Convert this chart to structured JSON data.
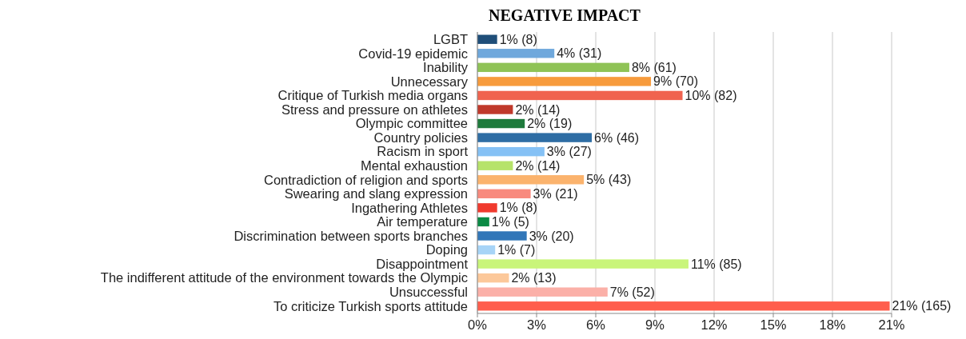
{
  "chart_data": {
    "type": "bar",
    "title": "NEGATIVE IMPACT",
    "orientation": "horizontal",
    "categories": [
      "LGBT",
      "Covid-19 epidemic",
      "Inability",
      "Unnecessary",
      "Critique of Turkish media organs",
      "Stress and pressure on athletes",
      "Olympic committee",
      "Country policies",
      "Racism in sport",
      "Mental exhaustion",
      "Contradiction of religion and sports",
      "Swearing and slang expression",
      "Ingathering Athletes",
      "Air temperature",
      "Discrimination between sports branches",
      "Doping",
      "Disappointment",
      "The indifferent attitude of the environment towards the Olympic",
      "Unsuccessful",
      "To criticize Turkish sports attitude"
    ],
    "values": [
      1.0,
      3.9,
      7.7,
      8.8,
      10.4,
      1.8,
      2.4,
      5.8,
      3.4,
      1.8,
      5.4,
      2.7,
      1.0,
      0.6,
      2.5,
      0.9,
      10.7,
      1.6,
      6.6,
      20.9
    ],
    "colors": [
      "#1f4e79",
      "#6fa8dc",
      "#8fc356",
      "#f79b3c",
      "#f0634f",
      "#c0392b",
      "#1e7a3c",
      "#2e6da4",
      "#85c1f5",
      "#b6e36a",
      "#fbb36d",
      "#f88a7e",
      "#f03a2e",
      "#0a8a44",
      "#3176b8",
      "#a7d4f7",
      "#c9f57a",
      "#fcc89a",
      "#fbb0a8",
      "#ff5e4d"
    ],
    "value_labels": [
      "1% (8)",
      "4% (31)",
      "8% (61)",
      "9% (70)",
      "10% (82)",
      "2% (14)",
      "2% (19)",
      "6% (46)",
      "3% (27)",
      "2% (14)",
      "5% (43)",
      "3% (21)",
      "1% (8)",
      "1% (5)",
      "3% (20)",
      "1% (7)",
      "11% (85)",
      "2% (13)",
      "7% (52)",
      "21% (165)"
    ],
    "xlim": [
      0,
      21
    ],
    "xticks": [
      {
        "value": 0,
        "label": "0%"
      },
      {
        "value": 3,
        "label": "3%"
      },
      {
        "value": 6,
        "label": "6%"
      },
      {
        "value": 9,
        "label": "9%"
      },
      {
        "value": 12,
        "label": "12%"
      },
      {
        "value": 15,
        "label": "15%"
      },
      {
        "value": 18,
        "label": "18%"
      },
      {
        "value": 21,
        "label": "21%"
      }
    ],
    "grid": "x"
  }
}
